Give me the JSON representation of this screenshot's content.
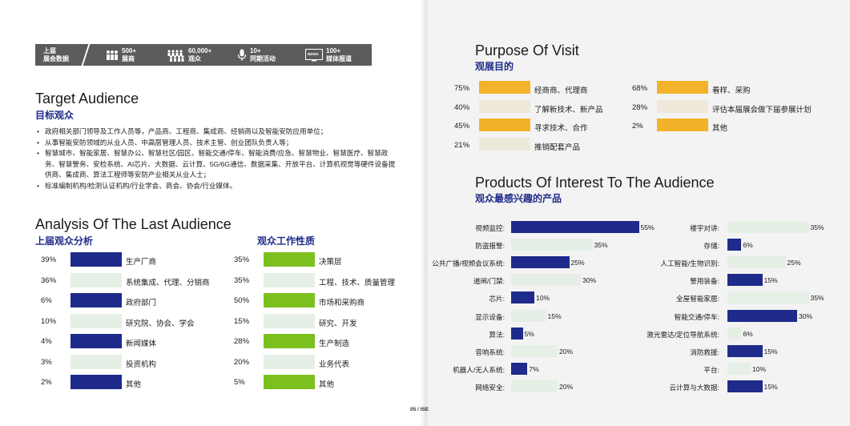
{
  "stats": [
    {
      "icon": "calendar-icon",
      "line1": "上届",
      "line2": "展会数据"
    },
    {
      "icon": "exhibitors-icon",
      "line1": "500+",
      "line2": "展商"
    },
    {
      "icon": "visitors-icon",
      "line1": "60,000+",
      "line2": "观众"
    },
    {
      "icon": "microphone-icon",
      "line1": "10+",
      "line2": "同期活动"
    },
    {
      "icon": "news-icon",
      "line1": "100+",
      "line2": "媒体报道",
      "badge": "NEWS"
    }
  ],
  "target": {
    "title_en": "Target Audience",
    "title_zh": "目标观众",
    "bullets": [
      "政府相关部门领导及工作人员等，产品商、工程商、集成商、经销商以及智能安防应用单位；",
      "从事智能安防领域的从业人员、中高层管理人员、技术主管、创业团队负责人等；",
      "智慧城市、智能家居、智慧办公、智慧社区/园区、智能交通/停车、智能消费/应急、智慧物业、智慧医疗、智慧政务、智慧警务、安检系统、AI芯片、大数据、云计算、5G/6G通信、数据采集、开放平台、计算机视觉等硬件设备提供商、集成商、算法工程师等安防产业相关从业人士；",
      "标准编制机构/检测认证机构/行业学会、商会、协会/行业媒体。"
    ]
  },
  "analysis": {
    "title_en": "Analysis Of The Last Audience",
    "left_title": "上届观众分析",
    "right_title": "观众工作性质",
    "left_rows": [
      {
        "pct": "39%",
        "label": "生产厂商",
        "value": 39,
        "hl": true
      },
      {
        "pct": "36%",
        "label": "系统集成、代理、分销商",
        "value": 36,
        "hl": false
      },
      {
        "pct": "6%",
        "label": "政府部门",
        "value": 6,
        "hl": true
      },
      {
        "pct": "10%",
        "label": "研究院、协会、学会",
        "value": 10,
        "hl": false
      },
      {
        "pct": "4%",
        "label": "新闻媒体",
        "value": 4,
        "hl": true
      },
      {
        "pct": "3%",
        "label": "投资机构",
        "value": 3,
        "hl": false
      },
      {
        "pct": "2%",
        "label": "其他",
        "value": 2,
        "hl": true
      }
    ],
    "right_rows": [
      {
        "pct": "35%",
        "label": "决策层",
        "value": 35,
        "hl": true
      },
      {
        "pct": "35%",
        "label": "工程、技术、质量管理",
        "value": 35,
        "hl": false
      },
      {
        "pct": "50%",
        "label": "市场和采购商",
        "value": 50,
        "hl": true
      },
      {
        "pct": "15%",
        "label": "研究、开发",
        "value": 15,
        "hl": false
      },
      {
        "pct": "28%",
        "label": "生产制造",
        "value": 28,
        "hl": true
      },
      {
        "pct": "20%",
        "label": "业务代表",
        "value": 20,
        "hl": false
      },
      {
        "pct": "5%",
        "label": "其他",
        "value": 5,
        "hl": true
      }
    ]
  },
  "purpose": {
    "title_en": "Purpose Of Visit",
    "title_zh": "观展目的",
    "rows": [
      {
        "pct": "75%",
        "label": "经商商、代理商",
        "value": 75,
        "hl": true
      },
      {
        "pct": "40%",
        "label": "了解新技术、新产品",
        "value": 40,
        "hl": false
      },
      {
        "pct": "45%",
        "label": "寻求技术、合作",
        "value": 45,
        "hl": true
      },
      {
        "pct": "21%",
        "label": "推销配套产品",
        "value": 21,
        "hl": false
      },
      {
        "pct": "68%",
        "label": "看样、采购",
        "value": 68,
        "hl": true
      },
      {
        "pct": "28%",
        "label": "评估本届展会做下届参展计划",
        "value": 28,
        "hl": false
      },
      {
        "pct": "2%",
        "label": "其他",
        "value": 2,
        "hl": true
      }
    ]
  },
  "products": {
    "title_en": "Products Of Interest To The Audience",
    "title_zh": "观众最感兴趣的产品",
    "left": [
      {
        "label": "视频监控:",
        "pct": "55%",
        "value": 55,
        "hl": true
      },
      {
        "label": "防盗报警:",
        "pct": "35%",
        "value": 35,
        "hl": false
      },
      {
        "label": "公共广播/视频会议系统:",
        "pct": "25%",
        "value": 25,
        "hl": true
      },
      {
        "label": "道闸/门禁:",
        "pct": "30%",
        "value": 30,
        "hl": false
      },
      {
        "label": "芯片:",
        "pct": "10%",
        "value": 10,
        "hl": true
      },
      {
        "label": "显示设备:",
        "pct": "15%",
        "value": 15,
        "hl": false
      },
      {
        "label": "算法:",
        "pct": "5%",
        "value": 5,
        "hl": true
      },
      {
        "label": "音响系统:",
        "pct": "20%",
        "value": 20,
        "hl": false
      },
      {
        "label": "机器人/无人系统:",
        "pct": "7%",
        "value": 7,
        "hl": true
      },
      {
        "label": "网络安全:",
        "pct": "20%",
        "value": 20,
        "hl": false
      }
    ],
    "right": [
      {
        "label": "楼宇对讲:",
        "pct": "35%",
        "value": 35,
        "hl": false
      },
      {
        "label": "存储:",
        "pct": "6%",
        "value": 6,
        "hl": true
      },
      {
        "label": "人工智能/生物识别:",
        "pct": "25%",
        "value": 25,
        "hl": false
      },
      {
        "label": "警用装备:",
        "pct": "15%",
        "value": 15,
        "hl": true
      },
      {
        "label": "全屋智能家居:",
        "pct": "35%",
        "value": 35,
        "hl": false
      },
      {
        "label": "智能交通/停车:",
        "pct": "30%",
        "value": 30,
        "hl": true
      },
      {
        "label": "激光雷达/定位导航系统:",
        "pct": "6%",
        "value": 6,
        "hl": false
      },
      {
        "label": "消防救援:",
        "pct": "15%",
        "value": 15,
        "hl": true
      },
      {
        "label": "平台:",
        "pct": "10%",
        "value": 10,
        "hl": false
      },
      {
        "label": "云计算与大数据:",
        "pct": "15%",
        "value": 15,
        "hl": true
      }
    ]
  },
  "footer": "05 / ISE"
}
